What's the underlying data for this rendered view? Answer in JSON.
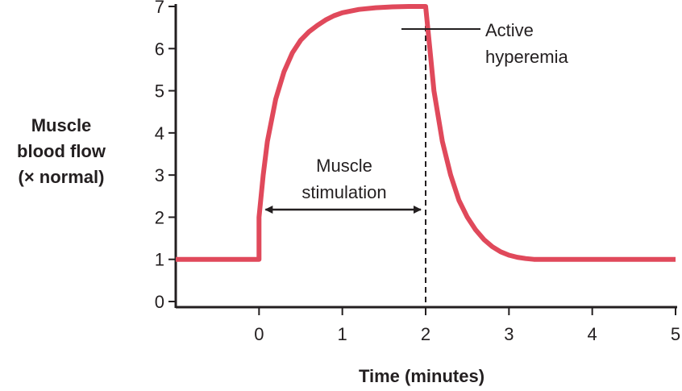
{
  "chart_data": {
    "type": "line",
    "xlabel": "Time (minutes)",
    "ylabel_lines": [
      "Muscle",
      "blood flow",
      "(× normal)"
    ],
    "xlim": [
      -1,
      5
    ],
    "ylim": [
      0,
      7
    ],
    "x_ticks": [
      "0",
      "1",
      "2",
      "3",
      "4",
      "5"
    ],
    "y_ticks": [
      "0",
      "1",
      "2",
      "3",
      "4",
      "5",
      "6",
      "7"
    ],
    "grid": false,
    "series": [
      {
        "color": "#e0495b",
        "points": [
          [
            -1,
            1
          ],
          [
            0,
            1
          ],
          [
            0,
            2
          ],
          [
            0.05,
            3.0
          ],
          [
            0.1,
            3.8
          ],
          [
            0.2,
            4.8
          ],
          [
            0.3,
            5.45
          ],
          [
            0.4,
            5.9
          ],
          [
            0.5,
            6.2
          ],
          [
            0.6,
            6.4
          ],
          [
            0.7,
            6.55
          ],
          [
            0.8,
            6.68
          ],
          [
            0.9,
            6.78
          ],
          [
            1.0,
            6.85
          ],
          [
            1.2,
            6.93
          ],
          [
            1.4,
            6.97
          ],
          [
            1.6,
            6.99
          ],
          [
            1.8,
            7.0
          ],
          [
            2.0,
            7.0
          ],
          [
            2.05,
            6.0
          ],
          [
            2.1,
            5.0
          ],
          [
            2.2,
            3.8
          ],
          [
            2.3,
            3.0
          ],
          [
            2.4,
            2.4
          ],
          [
            2.5,
            2.0
          ],
          [
            2.6,
            1.7
          ],
          [
            2.7,
            1.47
          ],
          [
            2.8,
            1.3
          ],
          [
            2.9,
            1.18
          ],
          [
            3.0,
            1.1
          ],
          [
            3.1,
            1.05
          ],
          [
            3.2,
            1.02
          ],
          [
            3.3,
            1.0
          ],
          [
            4.0,
            1.0
          ],
          [
            5.0,
            1.0
          ]
        ]
      }
    ],
    "annotations": {
      "stimulation_lines": [
        "Muscle",
        "stimulation"
      ],
      "stimulation_range": [
        0,
        2
      ],
      "hyperemia_lines": [
        "Active",
        "hyperemia"
      ],
      "dashed_line_x": 2
    }
  }
}
